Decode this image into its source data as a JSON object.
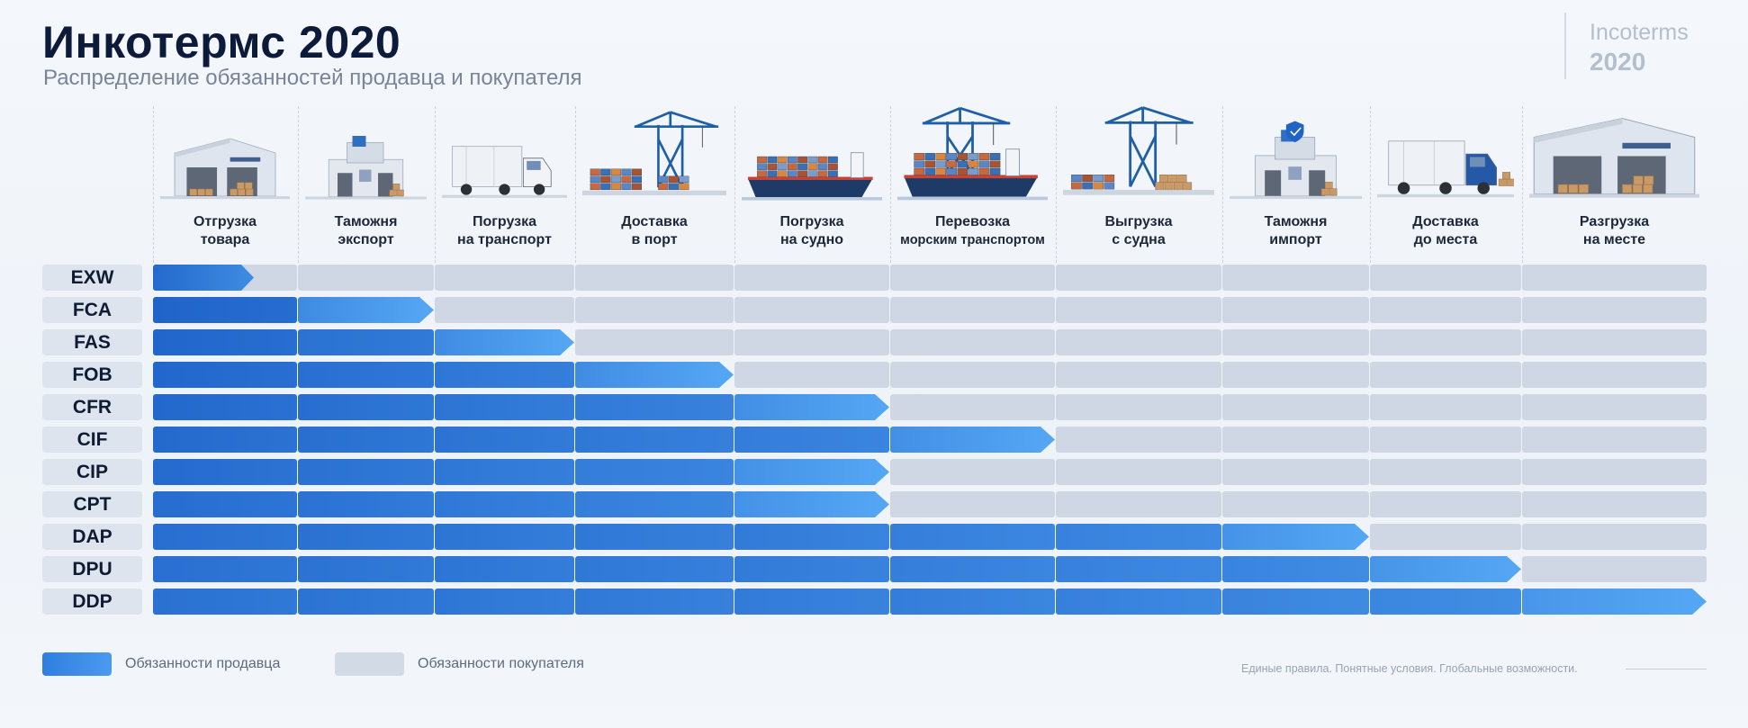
{
  "header": {
    "title": "Инкотермс 2020",
    "subtitle": "Распределение обязанностей продавца и покупателя",
    "brand_line1": "Incoterms",
    "brand_line2": "2020"
  },
  "stages": [
    {
      "line1": "Отгрузка",
      "line2": "товара",
      "icon": "warehouse-icon"
    },
    {
      "line1": "Таможня",
      "line2": "экспорт",
      "icon": "customs-building-icon"
    },
    {
      "line1": "Погрузка",
      "line2": "на транспорт",
      "icon": "truck-icon"
    },
    {
      "line1": "Доставка",
      "line2": "в порт",
      "icon": "port-crane-icon"
    },
    {
      "line1": "Погрузка",
      "line2": "на судно",
      "icon": "container-ship-icon"
    },
    {
      "line1": "Перевозка",
      "line2": "морским транспортом",
      "icon": "crane-ship-icon"
    },
    {
      "line1": "Выгрузка",
      "line2": "с судна",
      "icon": "unloading-crane-icon"
    },
    {
      "line1": "Таможня",
      "line2": "импорт",
      "icon": "customs-import-icon"
    },
    {
      "line1": "Доставка",
      "line2": "до места",
      "icon": "delivery-truck-icon"
    },
    {
      "line1": "Разгрузка",
      "line2": "на месте",
      "icon": "destination-warehouse-icon"
    }
  ],
  "terms": [
    {
      "code": "EXW",
      "seller_stages": 0.7
    },
    {
      "code": "FCA",
      "seller_stages": 2
    },
    {
      "code": "FAS",
      "seller_stages": 3
    },
    {
      "code": "FOB",
      "seller_stages": 4
    },
    {
      "code": "CFR",
      "seller_stages": 5
    },
    {
      "code": "CIF",
      "seller_stages": 6
    },
    {
      "code": "CIP",
      "seller_stages": 5
    },
    {
      "code": "CPT",
      "seller_stages": 5
    },
    {
      "code": "DAP",
      "seller_stages": 8
    },
    {
      "code": "DPU",
      "seller_stages": 9
    },
    {
      "code": "DDP",
      "seller_stages": 10
    }
  ],
  "legend": {
    "seller": "Обязанности продавца",
    "buyer": "Обязанности покупателя"
  },
  "footer": {
    "tagline": "Единые правила. Понятные условия.  Глобальные возможности."
  },
  "colors": {
    "seller_dark": "#1f63c9",
    "seller_light": "#55a7f4",
    "buyer": "#cfd7e4"
  }
}
